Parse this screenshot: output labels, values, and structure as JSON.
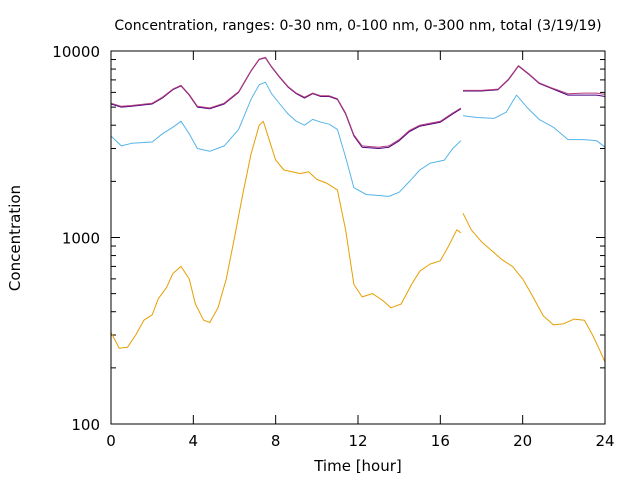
{
  "chart_data": {
    "type": "line",
    "title": "Concentration, ranges: 0-30 nm, 0-100 nm, 0-300 nm, total (3/19/19)",
    "xlabel": "Time [hour]",
    "ylabel": "Concentration",
    "xlim": [
      0,
      24
    ],
    "ylim": [
      100,
      10000
    ],
    "yscale": "log",
    "grid": false,
    "legend": "none",
    "x_ticks": [
      0,
      4,
      8,
      12,
      16,
      20,
      24
    ],
    "x_tick_labels": [
      "0",
      "4",
      "8",
      "12",
      "16",
      "20",
      "24"
    ],
    "y_ticks": [
      100,
      1000,
      10000
    ],
    "y_tick_labels": [
      "100",
      "1000",
      "10000"
    ],
    "y_minor_ticks": [
      200,
      300,
      400,
      500,
      600,
      700,
      800,
      900,
      2000,
      3000,
      4000,
      5000,
      6000,
      7000,
      8000,
      9000
    ],
    "series": [
      {
        "color": "#e69f00",
        "segments": [
          [
            [
              0,
              310
            ],
            [
              0.4,
              255
            ],
            [
              0.8,
              258
            ],
            [
              1.2,
              300
            ],
            [
              1.6,
              360
            ],
            [
              2.0,
              385
            ],
            [
              2.3,
              470
            ],
            [
              2.7,
              540
            ],
            [
              3.0,
              640
            ],
            [
              3.4,
              700
            ],
            [
              3.8,
              600
            ],
            [
              4.1,
              440
            ],
            [
              4.5,
              360
            ],
            [
              4.8,
              350
            ],
            [
              5.2,
              420
            ],
            [
              5.6,
              600
            ],
            [
              6.0,
              1000
            ],
            [
              6.4,
              1700
            ],
            [
              6.8,
              2800
            ],
            [
              7.2,
              4000
            ],
            [
              7.4,
              4200
            ],
            [
              7.7,
              3300
            ],
            [
              8.0,
              2600
            ],
            [
              8.4,
              2300
            ],
            [
              8.8,
              2250
            ],
            [
              9.2,
              2200
            ],
            [
              9.6,
              2250
            ],
            [
              10.0,
              2050
            ],
            [
              10.5,
              1950
            ],
            [
              11.0,
              1800
            ],
            [
              11.4,
              1100
            ],
            [
              11.8,
              560
            ],
            [
              12.2,
              480
            ],
            [
              12.7,
              500
            ],
            [
              13.2,
              460
            ],
            [
              13.6,
              420
            ],
            [
              14.1,
              440
            ],
            [
              14.6,
              560
            ],
            [
              15.0,
              660
            ],
            [
              15.5,
              720
            ],
            [
              16.0,
              750
            ],
            [
              16.4,
              900
            ],
            [
              16.8,
              1100
            ],
            [
              17.0,
              1060
            ]
          ],
          [
            [
              17.1,
              1350
            ],
            [
              17.5,
              1100
            ],
            [
              18.0,
              950
            ],
            [
              18.5,
              850
            ],
            [
              19.0,
              760
            ],
            [
              19.5,
              700
            ],
            [
              20.0,
              600
            ],
            [
              20.5,
              480
            ],
            [
              21.0,
              380
            ],
            [
              21.5,
              340
            ],
            [
              22.0,
              345
            ],
            [
              22.5,
              365
            ],
            [
              23.0,
              360
            ],
            [
              23.4,
              300
            ],
            [
              23.7,
              255
            ],
            [
              24.0,
              215
            ]
          ]
        ]
      },
      {
        "color": "#56b4e9",
        "segments": [
          [
            [
              0,
              3500
            ],
            [
              0.5,
              3100
            ],
            [
              1.0,
              3200
            ],
            [
              2.0,
              3250
            ],
            [
              2.5,
              3600
            ],
            [
              3.0,
              3900
            ],
            [
              3.4,
              4200
            ],
            [
              3.8,
              3600
            ],
            [
              4.2,
              3000
            ],
            [
              4.8,
              2900
            ],
            [
              5.5,
              3100
            ],
            [
              6.2,
              3800
            ],
            [
              6.8,
              5500
            ],
            [
              7.2,
              6600
            ],
            [
              7.5,
              6800
            ],
            [
              7.8,
              5900
            ],
            [
              8.2,
              5200
            ],
            [
              8.6,
              4600
            ],
            [
              9.0,
              4200
            ],
            [
              9.4,
              4000
            ],
            [
              9.8,
              4300
            ],
            [
              10.2,
              4150
            ],
            [
              10.6,
              4050
            ],
            [
              11.0,
              3800
            ],
            [
              11.4,
              2700
            ],
            [
              11.8,
              1850
            ],
            [
              12.4,
              1700
            ],
            [
              13.0,
              1680
            ],
            [
              13.5,
              1660
            ],
            [
              14.0,
              1750
            ],
            [
              14.5,
              2000
            ],
            [
              15.0,
              2300
            ],
            [
              15.5,
              2500
            ],
            [
              16.2,
              2600
            ],
            [
              16.6,
              3000
            ],
            [
              17.0,
              3300
            ]
          ],
          [
            [
              17.1,
              4500
            ],
            [
              17.8,
              4400
            ],
            [
              18.6,
              4350
            ],
            [
              19.2,
              4700
            ],
            [
              19.7,
              5800
            ],
            [
              20.2,
              5000
            ],
            [
              20.8,
              4300
            ],
            [
              21.5,
              3900
            ],
            [
              22.2,
              3350
            ],
            [
              23.0,
              3350
            ],
            [
              23.6,
              3300
            ],
            [
              24.0,
              3050
            ]
          ]
        ]
      },
      {
        "color": "#4b0082",
        "segments": [
          [
            [
              0,
              5200
            ],
            [
              0.5,
              5000
            ],
            [
              1.0,
              5050
            ],
            [
              2.0,
              5200
            ],
            [
              2.5,
              5600
            ],
            [
              3.0,
              6200
            ],
            [
              3.4,
              6500
            ],
            [
              3.8,
              5800
            ],
            [
              4.2,
              5000
            ],
            [
              4.8,
              4900
            ],
            [
              5.5,
              5200
            ],
            [
              6.2,
              6000
            ],
            [
              6.8,
              7800
            ],
            [
              7.2,
              9000
            ],
            [
              7.5,
              9200
            ],
            [
              7.8,
              8200
            ],
            [
              8.2,
              7200
            ],
            [
              8.6,
              6400
            ],
            [
              9.0,
              5900
            ],
            [
              9.4,
              5600
            ],
            [
              9.8,
              5900
            ],
            [
              10.2,
              5700
            ],
            [
              10.6,
              5700
            ],
            [
              11.0,
              5500
            ],
            [
              11.4,
              4600
            ],
            [
              11.8,
              3500
            ],
            [
              12.2,
              3050
            ],
            [
              13.0,
              3000
            ],
            [
              13.5,
              3050
            ],
            [
              14.0,
              3300
            ],
            [
              14.5,
              3700
            ],
            [
              15.0,
              3950
            ],
            [
              15.5,
              4050
            ],
            [
              16.0,
              4150
            ],
            [
              16.6,
              4600
            ],
            [
              17.0,
              4900
            ]
          ],
          [
            [
              17.1,
              6100
            ],
            [
              18.0,
              6100
            ],
            [
              18.8,
              6200
            ],
            [
              19.3,
              7000
            ],
            [
              19.8,
              8300
            ],
            [
              20.3,
              7500
            ],
            [
              20.8,
              6700
            ],
            [
              21.4,
              6300
            ],
            [
              22.2,
              5800
            ],
            [
              23.0,
              5800
            ],
            [
              23.6,
              5800
            ],
            [
              24.0,
              5700
            ]
          ]
        ]
      },
      {
        "color": "#b33d7a",
        "segments": [
          [
            [
              0,
              5250
            ],
            [
              0.5,
              5050
            ],
            [
              1.0,
              5100
            ],
            [
              2.0,
              5250
            ],
            [
              2.5,
              5650
            ],
            [
              3.0,
              6250
            ],
            [
              3.4,
              6550
            ],
            [
              3.8,
              5850
            ],
            [
              4.2,
              5050
            ],
            [
              4.8,
              4950
            ],
            [
              5.5,
              5250
            ],
            [
              6.2,
              6050
            ],
            [
              6.8,
              7850
            ],
            [
              7.2,
              9050
            ],
            [
              7.5,
              9250
            ],
            [
              7.8,
              8250
            ],
            [
              8.2,
              7250
            ],
            [
              8.6,
              6450
            ],
            [
              9.0,
              5950
            ],
            [
              9.4,
              5650
            ],
            [
              9.8,
              5950
            ],
            [
              10.2,
              5750
            ],
            [
              10.6,
              5750
            ],
            [
              11.0,
              5550
            ],
            [
              11.4,
              4650
            ],
            [
              11.8,
              3550
            ],
            [
              12.2,
              3100
            ],
            [
              13.0,
              3050
            ],
            [
              13.5,
              3100
            ],
            [
              14.0,
              3350
            ],
            [
              14.5,
              3750
            ],
            [
              15.0,
              4000
            ],
            [
              15.5,
              4100
            ],
            [
              16.0,
              4200
            ],
            [
              16.6,
              4650
            ],
            [
              17.0,
              4950
            ]
          ],
          [
            [
              17.1,
              6150
            ],
            [
              18.0,
              6150
            ],
            [
              18.8,
              6250
            ],
            [
              19.3,
              7050
            ],
            [
              19.8,
              8350
            ],
            [
              20.3,
              7550
            ],
            [
              20.8,
              6750
            ],
            [
              21.4,
              6350
            ],
            [
              22.2,
              5900
            ],
            [
              23.0,
              5950
            ],
            [
              23.6,
              5950
            ],
            [
              24.0,
              5850
            ]
          ]
        ]
      }
    ]
  }
}
